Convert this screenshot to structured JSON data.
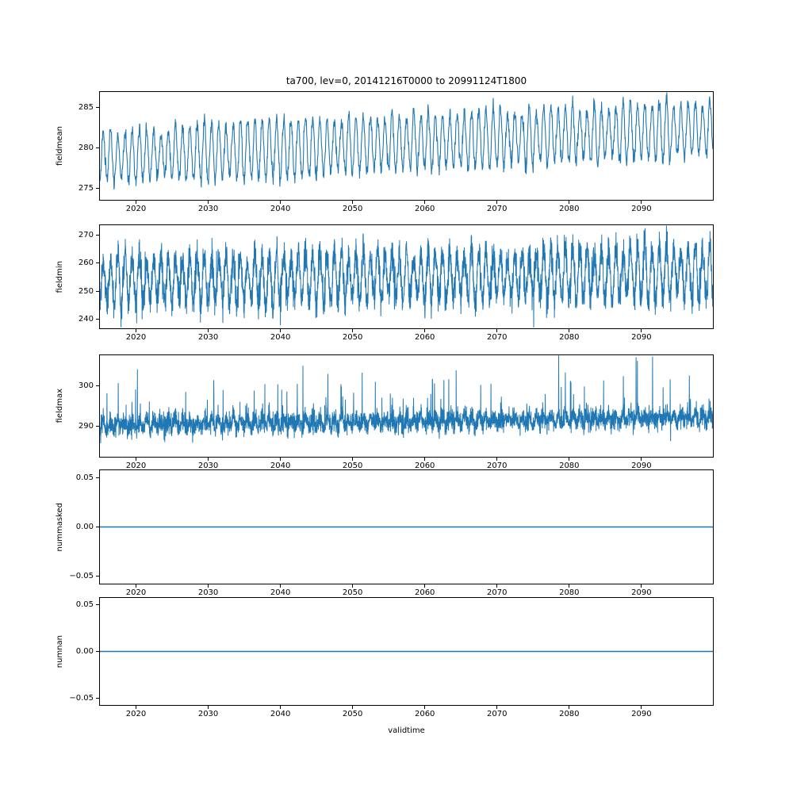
{
  "figure": {
    "background": "#ffffff",
    "spine_color": "#000000",
    "line_color": "#1f77b4"
  },
  "chart_data": {
    "type": "line",
    "title": "ta700, lev=0, 20141216T0000 to 20991124T1800",
    "xlabel": "validtime",
    "x_range": [
      2015.0,
      2099.9
    ],
    "x_ticks": [
      2020,
      2030,
      2040,
      2050,
      2060,
      2070,
      2080,
      2090
    ],
    "x_tick_labels": [
      "2020",
      "2030",
      "2040",
      "2050",
      "2060",
      "2070",
      "2080",
      "2090"
    ],
    "legend": "none",
    "grid": false,
    "line_color": "#1f77b4",
    "subplots": [
      {
        "ylabel": "fieldmean",
        "ylim": [
          273.6,
          286.9
        ],
        "yticks": [
          275,
          280,
          285
        ],
        "ytick_labels": [
          "275",
          "280",
          "285"
        ],
        "summary": {
          "approx_min": 274,
          "approx_max": 286.5,
          "start_mid": 278.9,
          "end_mid": 282.4,
          "pattern": "annual oscillation with rising trend"
        },
        "series": {
          "kind": "seasonal",
          "seed": 101,
          "start_mid": 278.9,
          "end_mid": 282.4,
          "amp": 3.2,
          "amp_jitter": 0.7,
          "noise": 0.45,
          "sample_step_years": 0.04,
          "stroke_width": 1.1
        }
      },
      {
        "ylabel": "fieldmin",
        "ylim": [
          236.8,
          273.4
        ],
        "yticks": [
          240,
          250,
          260,
          270
        ],
        "ytick_labels": [
          "240",
          "250",
          "260",
          "270"
        ],
        "summary": {
          "approx_min": 239,
          "approx_max": 272,
          "start_mid": 253.8,
          "end_mid": 256.5,
          "pattern": "dense noisy annual oscillation, slight rising trend"
        },
        "series": {
          "kind": "seasonal",
          "seed": 202,
          "start_mid": 253.8,
          "end_mid": 256.5,
          "amp": 8.0,
          "amp_jitter": 2.0,
          "noise": 3.0,
          "sample_step_years": 0.02,
          "stroke_width": 1.0
        }
      },
      {
        "ylabel": "fieldmax",
        "ylim": [
          282.6,
          307.5
        ],
        "yticks": [
          290,
          300
        ],
        "ytick_labels": [
          "290",
          "300"
        ],
        "summary": {
          "approx_min": 285,
          "approx_max": 307,
          "start_mid": 290.3,
          "end_mid": 292.3,
          "pattern": "dense band near 287-296 with upward spikes to ~305, slight rising trend"
        },
        "series": {
          "kind": "spiky",
          "seed": 303,
          "start_mid": 290.3,
          "end_mid": 292.3,
          "amp": 1.0,
          "amp_jitter": 0.4,
          "noise": 1.25,
          "spike_prob": 0.025,
          "spike_base": 2.0,
          "spike_extra": 10.0,
          "spike_trend": 3.0,
          "sample_step_years": 0.02,
          "stroke_width": 1.0
        }
      },
      {
        "ylabel": "nummasked",
        "ylim": [
          -0.0575,
          0.0575
        ],
        "yticks": [
          -0.05,
          0,
          0.05
        ],
        "ytick_labels": [
          "−0.05",
          "0.00",
          "0.05"
        ],
        "summary": {
          "constant_value": 0,
          "pattern": "flat line at 0.00"
        },
        "series": {
          "kind": "constant",
          "value": 0,
          "stroke_width": 1.5
        }
      },
      {
        "ylabel": "numnan",
        "ylim": [
          -0.0575,
          0.0575
        ],
        "yticks": [
          -0.05,
          0,
          0.05
        ],
        "ytick_labels": [
          "−0.05",
          "0.00",
          "0.05"
        ],
        "summary": {
          "constant_value": 0,
          "pattern": "flat line at 0.00"
        },
        "series": {
          "kind": "constant",
          "value": 0,
          "stroke_width": 1.5
        }
      }
    ]
  }
}
